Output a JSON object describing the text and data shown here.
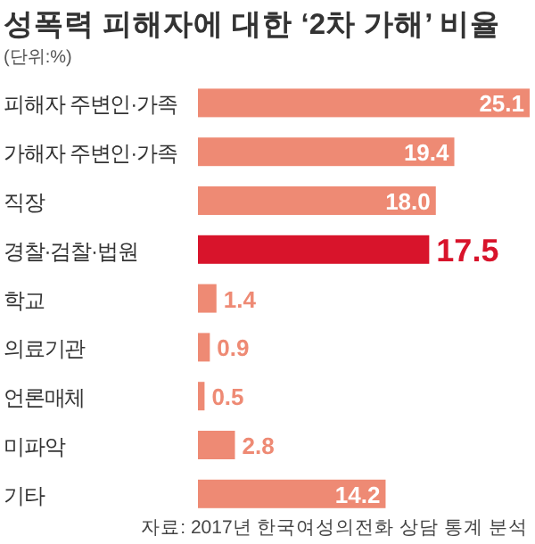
{
  "chart_data": {
    "type": "bar",
    "orientation": "horizontal",
    "title": "성폭력 피해자에 대한 ‘2차 가해’ 비율",
    "subtitle": "(단위:%)",
    "categories": [
      "피해자 주변인·가족",
      "가해자 주변인·가족",
      "직장",
      "경찰·검찰·법원",
      "학교",
      "의료기관",
      "언론매체",
      "미파악",
      "기타"
    ],
    "values": [
      25.1,
      19.4,
      18.0,
      17.5,
      1.4,
      0.9,
      0.5,
      2.8,
      14.2
    ],
    "value_labels": [
      "25.1",
      "19.4",
      "18.0",
      "17.5",
      "1.4",
      "0.9",
      "0.5",
      "2.8",
      "14.2"
    ],
    "colors": [
      "#ee8a74",
      "#ee8a74",
      "#ee8a74",
      "#d8142b",
      "#ee8a74",
      "#ee8a74",
      "#ee8a74",
      "#ee8a74",
      "#ee8a74"
    ],
    "annotations": [
      "자료: 2017년 한국여성의전화 상담 통계 분석"
    ]
  }
}
